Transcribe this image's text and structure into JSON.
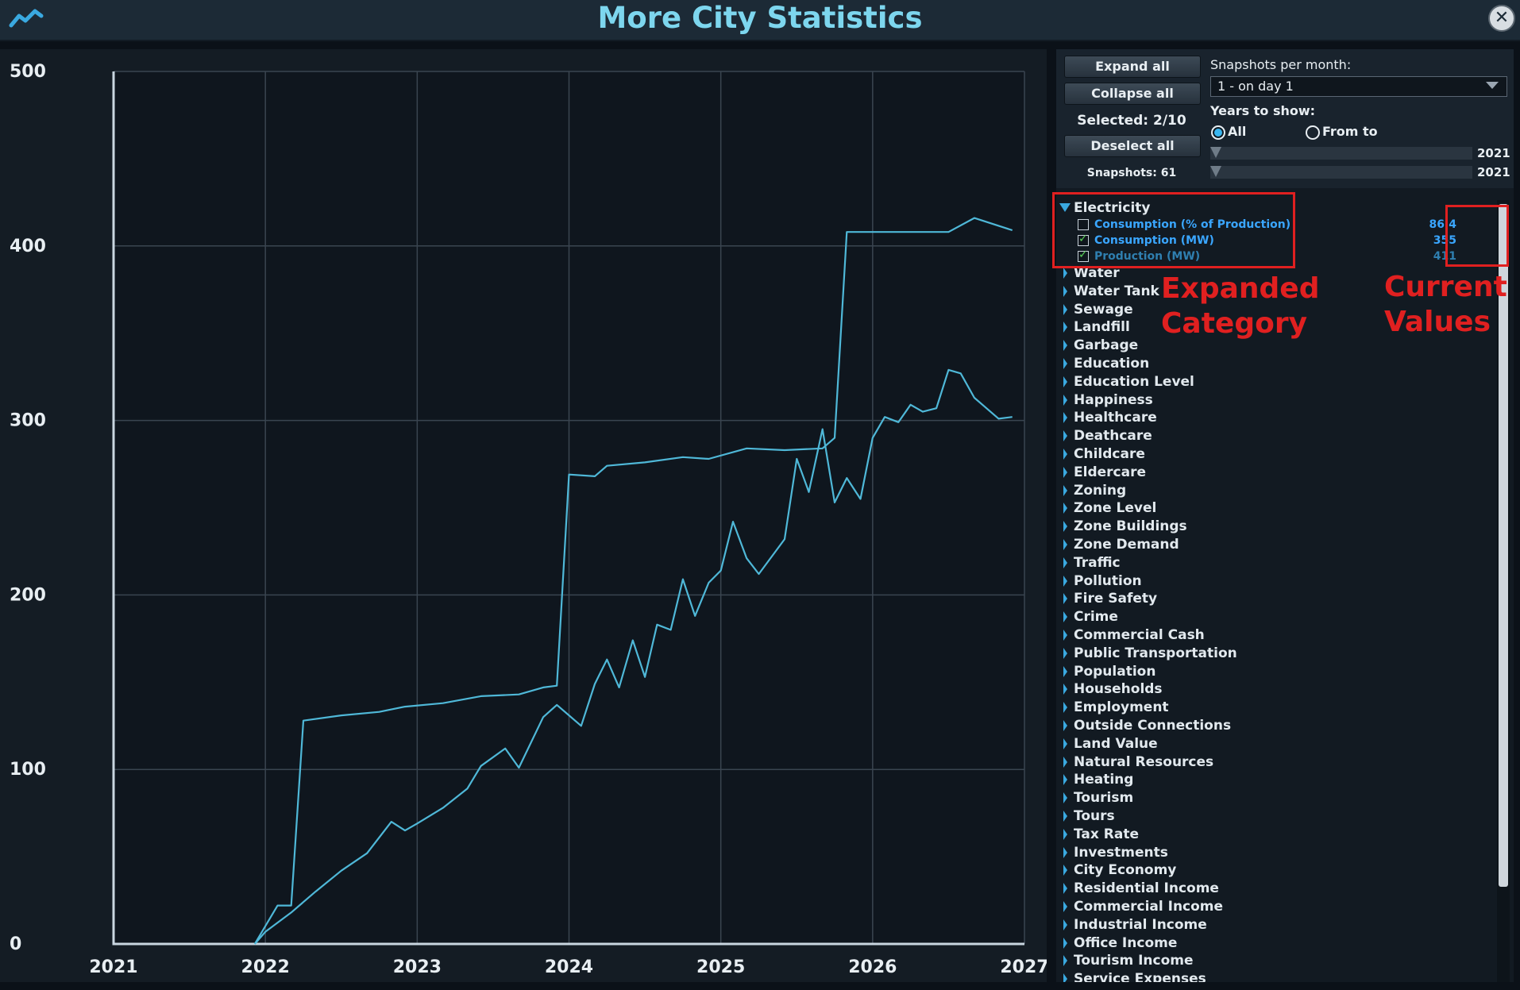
{
  "window": {
    "title": "More City Statistics"
  },
  "icons": {
    "app": "chart-trend-icon",
    "close": "close-icon"
  },
  "colors": {
    "accent": "#7dd6ee",
    "series_line": "#4fb8d8",
    "annotation": "#e02020"
  },
  "controls": {
    "expand_all": "Expand all",
    "collapse_all": "Collapse all",
    "selected": "Selected: 2/10",
    "deselect_all": "Deselect all",
    "snapshots": "Snapshots: 61",
    "snapshots_per_month_label": "Snapshots per month:",
    "snapshots_per_month_value": "1 - on day 1",
    "years_label": "Years to show:",
    "radio_all": "All",
    "radio_from_to": "From to",
    "radio_selected": "All",
    "year_from": "2021",
    "year_to": "2021"
  },
  "tree": {
    "expanded_category": "Electricity",
    "subitems": [
      {
        "label": "Consumption (% of Production)",
        "value": "86.4",
        "checked": false,
        "color": "#3aa6ff"
      },
      {
        "label": "Consumption (MW)",
        "value": "355",
        "checked": true,
        "color": "#3aa6ff"
      },
      {
        "label": "Production (MW)",
        "value": "411",
        "checked": true,
        "color": "#2f7fb0"
      }
    ],
    "categories": [
      "Water",
      "Water Tank",
      "Sewage",
      "Landfill",
      "Garbage",
      "Education",
      "Education Level",
      "Happiness",
      "Healthcare",
      "Deathcare",
      "Childcare",
      "Eldercare",
      "Zoning",
      "Zone Level",
      "Zone Buildings",
      "Zone Demand",
      "Traffic",
      "Pollution",
      "Fire Safety",
      "Crime",
      "Commercial Cash",
      "Public Transportation",
      "Population",
      "Households",
      "Employment",
      "Outside Connections",
      "Land Value",
      "Natural Resources",
      "Heating",
      "Tourism",
      "Tours",
      "Tax Rate",
      "Investments",
      "City Economy",
      "Residential Income",
      "Commercial Income",
      "Industrial Income",
      "Office Income",
      "Tourism Income",
      "Service Expenses"
    ]
  },
  "annotations": {
    "expanded": "Expanded\nCategory",
    "current": "Current\nValues"
  },
  "chart_data": {
    "type": "line",
    "ylim": [
      0,
      500
    ],
    "xlim": [
      2021,
      2027
    ],
    "y_ticks": [
      "0",
      "100",
      "200",
      "300",
      "400",
      "500"
    ],
    "x_ticks": [
      "2021",
      "2022",
      "2023",
      "2024",
      "2025",
      "2026",
      "2027"
    ],
    "grid": true,
    "series": [
      {
        "points": [
          [
            2021.93,
            0
          ],
          [
            2022.08,
            22
          ],
          [
            2022.17,
            22
          ],
          [
            2022.25,
            128
          ],
          [
            2022.5,
            131
          ],
          [
            2022.75,
            133
          ],
          [
            2022.92,
            136
          ],
          [
            2023.17,
            138
          ],
          [
            2023.42,
            142
          ],
          [
            2023.67,
            143
          ],
          [
            2023.83,
            147
          ],
          [
            2023.92,
            148
          ],
          [
            2024.0,
            269
          ],
          [
            2024.17,
            268
          ],
          [
            2024.25,
            274
          ],
          [
            2024.5,
            276
          ],
          [
            2024.75,
            279
          ],
          [
            2024.92,
            278
          ],
          [
            2025.17,
            284
          ],
          [
            2025.42,
            283
          ],
          [
            2025.67,
            284
          ],
          [
            2025.75,
            290
          ],
          [
            2025.83,
            408
          ],
          [
            2026.0,
            408
          ],
          [
            2026.25,
            408
          ],
          [
            2026.5,
            408
          ],
          [
            2026.67,
            416
          ],
          [
            2026.92,
            409
          ]
        ]
      },
      {
        "points": [
          [
            2021.93,
            0
          ],
          [
            2022.0,
            7
          ],
          [
            2022.17,
            18
          ],
          [
            2022.33,
            30
          ],
          [
            2022.5,
            42
          ],
          [
            2022.67,
            52
          ],
          [
            2022.83,
            70
          ],
          [
            2022.92,
            65
          ],
          [
            2023.0,
            69
          ],
          [
            2023.17,
            78
          ],
          [
            2023.33,
            89
          ],
          [
            2023.42,
            102
          ],
          [
            2023.58,
            112
          ],
          [
            2023.67,
            101
          ],
          [
            2023.83,
            130
          ],
          [
            2023.92,
            137
          ],
          [
            2024.08,
            125
          ],
          [
            2024.17,
            149
          ],
          [
            2024.25,
            163
          ],
          [
            2024.33,
            147
          ],
          [
            2024.42,
            174
          ],
          [
            2024.5,
            153
          ],
          [
            2024.58,
            183
          ],
          [
            2024.67,
            180
          ],
          [
            2024.75,
            209
          ],
          [
            2024.83,
            188
          ],
          [
            2024.92,
            207
          ],
          [
            2025.0,
            214
          ],
          [
            2025.08,
            242
          ],
          [
            2025.17,
            221
          ],
          [
            2025.25,
            212
          ],
          [
            2025.42,
            232
          ],
          [
            2025.5,
            278
          ],
          [
            2025.58,
            259
          ],
          [
            2025.67,
            295
          ],
          [
            2025.75,
            253
          ],
          [
            2025.83,
            267
          ],
          [
            2025.92,
            255
          ],
          [
            2026.0,
            290
          ],
          [
            2026.08,
            302
          ],
          [
            2026.17,
            299
          ],
          [
            2026.25,
            309
          ],
          [
            2026.33,
            305
          ],
          [
            2026.42,
            307
          ],
          [
            2026.5,
            329
          ],
          [
            2026.58,
            327
          ],
          [
            2026.67,
            313
          ],
          [
            2026.83,
            301
          ],
          [
            2026.92,
            302
          ]
        ]
      }
    ]
  }
}
